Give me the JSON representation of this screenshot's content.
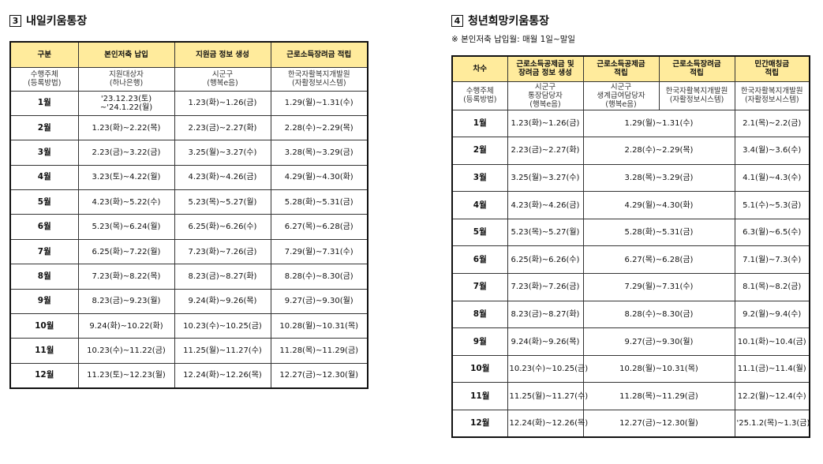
{
  "left": {
    "num": "3",
    "title": "내일키움통장",
    "headers": [
      "구분",
      "본인저축 납입",
      "지원금 정보 생성",
      "근로소득장려금 적립"
    ],
    "subrow": [
      "수행주체\n(등록방법)",
      "지원대상자\n(하나은행)",
      "시군구\n(행복e음)",
      "한국자활복지개발원\n(자활정보시스템)"
    ],
    "rows": [
      [
        "1월",
        "'23.12.23(토)\n~'24.1.22(월)",
        "1.23(화)~1.26(금)",
        "1.29(월)~1.31(수)"
      ],
      [
        "2월",
        "1.23(화)~2.22(목)",
        "2.23(금)~2.27(화)",
        "2.28(수)~2.29(목)"
      ],
      [
        "3월",
        "2.23(금)~3.22(금)",
        "3.25(월)~3.27(수)",
        "3.28(목)~3.29(금)"
      ],
      [
        "4월",
        "3.23(토)~4.22(월)",
        "4.23(화)~4.26(금)",
        "4.29(월)~4.30(화)"
      ],
      [
        "5월",
        "4.23(화)~5.22(수)",
        "5.23(목)~5.27(월)",
        "5.28(화)~5.31(금)"
      ],
      [
        "6월",
        "5.23(목)~6.24(월)",
        "6.25(화)~6.26(수)",
        "6.27(목)~6.28(금)"
      ],
      [
        "7월",
        "6.25(화)~7.22(월)",
        "7.23(화)~7.26(금)",
        "7.29(월)~7.31(수)"
      ],
      [
        "8월",
        "7.23(화)~8.22(목)",
        "8.23(금)~8.27(화)",
        "8.28(수)~8.30(금)"
      ],
      [
        "9월",
        "8.23(금)~9.23(월)",
        "9.24(화)~9.26(목)",
        "9.27(금)~9.30(월)"
      ],
      [
        "10월",
        "9.24(화)~10.22(화)",
        "10.23(수)~10.25(금)",
        "10.28(월)~10.31(목)"
      ],
      [
        "11월",
        "10.23(수)~11.22(금)",
        "11.25(월)~11.27(수)",
        "11.28(목)~11.29(금)"
      ],
      [
        "12월",
        "11.23(토)~12.23(월)",
        "12.24(화)~12.26(목)",
        "12.27(금)~12.30(월)"
      ]
    ]
  },
  "right": {
    "num": "4",
    "title": "청년희망키움통장",
    "note": "※ 본인저축 납입월: 매월 1일~말일",
    "headers": [
      "차수",
      "근로소득공제금 및\n장려금 정보 생성",
      "근로소득공제금\n적립",
      "근로소득장려금\n적립",
      "민간매칭금\n적립"
    ],
    "subrow": [
      "수행주체\n(등록방법)",
      "시군구\n통장담당자\n(행복e음)",
      "시군구\n생계급여담당자\n(행복e음)",
      "한국자활복지개발원\n(자활정보시스템)",
      "한국자활복지개발원\n(자활정보시스템)"
    ],
    "rows": [
      [
        "1월",
        "1.23(화)~1.26(금)",
        "1.29(월)~1.31(수)",
        "2.1(목)~2.2(금)"
      ],
      [
        "2월",
        "2.23(금)~2.27(화)",
        "2.28(수)~2.29(목)",
        "3.4(월)~3.6(수)"
      ],
      [
        "3월",
        "3.25(월)~3.27(수)",
        "3.28(목)~3.29(금)",
        "4.1(월)~4.3(수)"
      ],
      [
        "4월",
        "4.23(화)~4.26(금)",
        "4.29(월)~4.30(화)",
        "5.1(수)~5.3(금)"
      ],
      [
        "5월",
        "5.23(목)~5.27(월)",
        "5.28(화)~5.31(금)",
        "6.3(월)~6.5(수)"
      ],
      [
        "6월",
        "6.25(화)~6.26(수)",
        "6.27(목)~6.28(금)",
        "7.1(월)~7.3(수)"
      ],
      [
        "7월",
        "7.23(화)~7.26(금)",
        "7.29(월)~7.31(수)",
        "8.1(목)~8.2(금)"
      ],
      [
        "8월",
        "8.23(금)~8.27(화)",
        "8.28(수)~8.30(금)",
        "9.2(월)~9.4(수)"
      ],
      [
        "9월",
        "9.24(화)~9.26(목)",
        "9.27(금)~9.30(월)",
        "10.1(화)~10.4(금)"
      ],
      [
        "10월",
        "10.23(수)~10.25(금)",
        "10.28(월)~10.31(목)",
        "11.1(금)~11.4(월)"
      ],
      [
        "11월",
        "11.25(월)~11.27(수)",
        "11.28(목)~11.29(금)",
        "12.2(월)~12.4(수)"
      ],
      [
        "12월",
        "12.24(화)~12.26(목)",
        "12.27(금)~12.30(월)",
        "'25.1.2(목)~1.3(금)"
      ]
    ]
  }
}
